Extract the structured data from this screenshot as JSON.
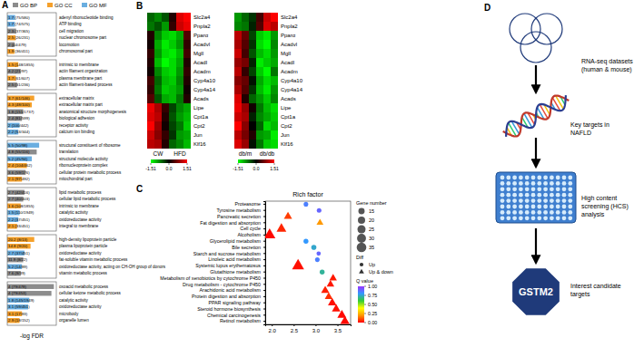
{
  "chart_data": [
    {
      "type": "bar",
      "panel": "A",
      "orientation": "horizontal",
      "xlabel": "-log FDR",
      "xlim": [
        0,
        20
      ],
      "tick_labels": false,
      "legend": "top",
      "series": [
        {
          "name": "GO BP",
          "color": "#8c8c8c"
        },
        {
          "name": "GO CC",
          "color": "#f5a02a"
        },
        {
          "name": "GO MF",
          "color": "#6aaee0"
        }
      ],
      "groups": [
        {
          "categories": [
            "adenyl ribonucleotide binding",
            "ATP binding",
            "cell migration",
            "nuclear chromosome part",
            "locomotion",
            "chromosomal part"
          ],
          "labels": [
            "1.7 (75/580)",
            "1.7 (74/575)",
            "2.3 (37/365)",
            "2.5 (26/231)",
            "2 (44/479)",
            "1.9 (36/411)"
          ],
          "ontology": [
            "GO MF",
            "GO MF",
            "GO BP",
            "GO CC",
            "GO BP",
            "GO CC"
          ],
          "values": [
            3.2,
            3.1,
            3.6,
            3.4,
            3.0,
            2.9
          ]
        },
        {
          "categories": [
            "intrinsic to membrane",
            "actin filament organization",
            "plasma membrane part",
            "actin filament-based process"
          ],
          "labels": [
            "1.5 (148/1855)",
            "4.2 (21/97)",
            "1.7 (61/607)",
            "2.5 (31/236)"
          ],
          "ontology": [
            "GO CC",
            "GO BP",
            "GO CC",
            "GO BP"
          ],
          "values": [
            4.5,
            5.5,
            3.5,
            4.0
          ]
        },
        {
          "categories": [
            "extracellular matrix",
            "extracellular matrix part",
            "anatomical structure morphogenesis",
            "biological adhesion",
            "receptor activity",
            "calcium ion binding"
          ],
          "labels": [
            "3.7 (61/146)",
            "4.3 (48/100)",
            "1.8 (151/1737)",
            "2.4 (81/599)",
            "2 (100/442)",
            "2.2 (53/344)"
          ],
          "ontology": [
            "GO CC",
            "GO CC",
            "GO BP",
            "GO BP",
            "GO MF",
            "GO MF"
          ],
          "values": [
            11,
            10,
            6.5,
            6,
            5,
            4.5
          ]
        },
        {
          "categories": [
            "structural constituent of ribosome",
            "translation",
            "structural molecule activity",
            "ribonucleoprotein complex",
            "cellular protein metabolic process",
            "mitochondrial part"
          ],
          "labels": [
            "5.5 (50/98)",
            "4.8 (55/116)",
            "5.2 (45/94)",
            "2.4 (104/462)",
            "3.6 (59/176)",
            "2.1 (97/492)"
          ],
          "ontology": [
            "GO MF",
            "GO BP",
            "GO MF",
            "GO CC",
            "GO BP",
            "GO CC"
          ],
          "values": [
            13,
            12,
            10,
            8,
            7.5,
            6
          ]
        },
        {
          "categories": [
            "lipid metabolic process",
            "cellular lipid metabolic process",
            "intrinsic to membrane",
            "catalytic activity",
            "oxidoreductase activity",
            "integral to membrane"
          ],
          "labels": [
            "2.7 (42/416)",
            "2.7 (40/403)",
            "1.6 (108/1855)",
            "1.5 (110/1949)",
            "2.2 (37/451)",
            "2.1 (33/451)"
          ],
          "ontology": [
            "GO BP",
            "GO BP",
            "GO CC",
            "GO MF",
            "GO MF",
            "GO CC"
          ],
          "values": [
            7,
            6.5,
            5.5,
            5,
            4.5,
            4
          ]
        },
        {
          "categories": [
            "high-density lipoprotein particle",
            "plasma lipoprotein particle",
            "oxidoreductase activity",
            "fat-soluble vitamin metabolic process",
            "oxidoreductase activity, acting on CH-OH group of donors",
            "vitamin metabolic process"
          ],
          "labels": [
            "20.2 (8/13)",
            "14.8 (9/20)",
            "2.7 (37/451)",
            "11.9 (8/22)",
            "5.2 (14/89)",
            "7.6 (9/39)"
          ],
          "ontology": [
            "GO CC",
            "GO CC",
            "GO MF",
            "GO BP",
            "GO MF",
            "GO BP"
          ],
          "values": [
            11,
            9.5,
            7,
            6.5,
            6,
            5.5
          ]
        },
        {
          "categories": [
            "oxoacid metabolic process",
            "cellular ketone metabolic process",
            "catalytic activity",
            "oxidoreductase activity",
            "microbody",
            "organelle lumen"
          ],
          "labels": [
            "4 (79/478)",
            "4 (79/453)",
            "1.8 (145/1949)",
            "3.1 (59/451)",
            "3.1 (17/83)",
            "2.9 (18/152)"
          ],
          "ontology": [
            "GO BP",
            "GO BP",
            "GO MF",
            "GO MF",
            "GO CC",
            "GO CC"
          ],
          "values": [
            19,
            18,
            9,
            8.5,
            6,
            5
          ]
        }
      ]
    },
    {
      "type": "heatmap",
      "panel": "B",
      "rows": [
        "Slc2a4",
        "Pnpla2",
        "Pparα",
        "Acadvl",
        "Mgll",
        "Acadl",
        "Acadm",
        "Cyp4a10",
        "Cyp4a14",
        "Acads",
        "Lipe",
        "Cpt1a",
        "Cpt2",
        "Jun",
        "Klf16"
      ],
      "column_groups": [
        "CW",
        "HFD"
      ],
      "cells": [
        [
          -0.6,
          -0.8,
          -0.5,
          0.2,
          1.3,
          1.5
        ],
        [
          -0.7,
          -0.5,
          -0.9,
          0.3,
          1.2,
          1.4
        ],
        [
          0.2,
          -0.8,
          -1.2,
          -1.3,
          -1.0,
          0.5
        ],
        [
          0.1,
          -1.0,
          -1.4,
          -1.2,
          -0.9,
          0.3
        ],
        [
          0.3,
          -0.9,
          -1.3,
          -1.4,
          -1.1,
          0.4
        ],
        [
          0.2,
          -1.1,
          -1.5,
          -1.3,
          -1.0,
          0.2
        ],
        [
          0.1,
          -0.8,
          -1.2,
          -1.3,
          -0.9,
          0.3
        ],
        [
          0.4,
          -0.6,
          -1.1,
          -1.2,
          -0.8,
          0.2
        ],
        [
          0.3,
          -0.7,
          -1.2,
          -1.1,
          -0.9,
          0.1
        ],
        [
          0.5,
          -0.5,
          -1.0,
          -1.1,
          -0.7,
          0.2
        ],
        [
          1.4,
          1.0,
          0.3,
          -0.4,
          -0.8,
          -1.0
        ],
        [
          1.3,
          1.1,
          0.2,
          -0.5,
          -0.9,
          -1.1
        ],
        [
          1.5,
          0.9,
          0.1,
          -0.4,
          -0.7,
          -1.2
        ],
        [
          1.2,
          0.8,
          0.3,
          -0.3,
          -0.9,
          -1.0
        ],
        [
          1.1,
          1.0,
          0.2,
          -0.6,
          -0.8,
          -1.1
        ]
      ],
      "colorbar": {
        "range": [
          -1.51,
          1.51
        ],
        "ticks": [
          -1.51,
          {
            "value": 0,
            "label": "0.0"
          },
          1.51
        ],
        "colors": [
          "#00ff00",
          "#000000",
          "#ff0000"
        ]
      }
    },
    {
      "type": "heatmap",
      "rows": [
        "Slc2a4",
        "Pnpla2",
        "Pparα",
        "Acadvl",
        "Mgll",
        "Acadl",
        "Acadm",
        "Cyp4a10",
        "Cyp4a14",
        "Acads",
        "Lipe",
        "Cpt1a",
        "Cpt2",
        "Jun",
        "Klf16"
      ],
      "column_groups": [
        "db/m",
        "db/db"
      ],
      "cells": [
        [
          -0.9,
          -0.6,
          -0.3,
          0.4,
          1.2,
          1.5
        ],
        [
          -0.8,
          -0.7,
          -0.2,
          0.5,
          1.3,
          1.1
        ],
        [
          1.1,
          0.6,
          -0.4,
          -1.2,
          -1.4,
          -0.9
        ],
        [
          1.0,
          0.5,
          -0.3,
          -1.3,
          -1.5,
          -0.8
        ],
        [
          1.2,
          0.4,
          -0.5,
          -1.1,
          -1.3,
          -0.9
        ],
        [
          0.9,
          0.7,
          -0.2,
          -1.4,
          -1.2,
          -1.0
        ],
        [
          1.1,
          0.3,
          -0.4,
          -1.2,
          -1.5,
          -0.7
        ],
        [
          0.8,
          0.6,
          -0.1,
          -1.0,
          -1.3,
          -1.1
        ],
        [
          1.0,
          0.5,
          -0.3,
          -1.1,
          -1.4,
          -0.9
        ],
        [
          1.3,
          0.2,
          -0.6,
          -0.9,
          -1.2,
          -0.8
        ],
        [
          1.4,
          0.9,
          0.1,
          -0.7,
          -1.1,
          -1.3
        ],
        [
          1.2,
          1.0,
          -0.2,
          -0.8,
          -1.0,
          -1.2
        ],
        [
          1.5,
          0.8,
          0.0,
          -0.6,
          -1.3,
          -1.1
        ],
        [
          1.1,
          0.7,
          0.2,
          -0.9,
          -1.0,
          -1.4
        ],
        [
          1.3,
          0.9,
          -0.1,
          -0.7,
          -1.2,
          -1.3
        ]
      ],
      "colorbar": {
        "range": [
          -1.51,
          1.51
        ],
        "ticks": [
          -1.51,
          {
            "value": 0,
            "label": "0.0"
          },
          1.51
        ],
        "colors": [
          "#00ff00",
          "#000000",
          "#ff0000"
        ]
      }
    },
    {
      "type": "scatter",
      "panel": "C",
      "orientation": "horizontal",
      "xlabel": "Rich factor",
      "categories": [
        "Proteasome",
        "Tyrosine metabolism",
        "Pancreatic secretion",
        "Fat digestion and absorption",
        "Cell cycle",
        "Alcoholism",
        "Glycerolipid metabolism",
        "Bile secretion",
        "Starch and sucrose metabolism",
        "Linoleic acid metabolism",
        "Systemic lupus erythematosus",
        "Glutathione metabolism",
        "Metabolism of xenobiotics by cytochrome P450",
        "Drug metabolism - cytochrome P450",
        "Arachidonic acid metabolism",
        "Protein digestion and absorption",
        "PPAR signaling pathway",
        "Steroid hormone biosynthesis",
        "Chemical carcinogenesis",
        "Retinol metabolism"
      ],
      "values": [
        2.78,
        3.08,
        2.37,
        3.1,
        2.22,
        1.95,
        2.78,
        2.96,
        3.07,
        3.04,
        2.6,
        3.15,
        3.4,
        3.34,
        3.22,
        3.3,
        3.38,
        3.47,
        3.6,
        3.67
      ],
      "sizes": [
        8,
        8,
        14,
        10,
        20,
        28,
        9,
        10,
        7,
        8,
        30,
        9,
        12,
        12,
        14,
        13,
        15,
        15,
        17,
        18
      ],
      "q_values": [
        0.85,
        0.9,
        0.08,
        0.2,
        0.05,
        0.01,
        0.8,
        0.75,
        0.9,
        0.85,
        0.02,
        0.7,
        0.03,
        0.03,
        0.04,
        0.06,
        0.02,
        0.02,
        0.01,
        0.01
      ],
      "diff": [
        "Up",
        "Up",
        "Up & down",
        "Up & down",
        "Up & down",
        "Up & down",
        "Up",
        "Up",
        "Up",
        "Up",
        "Up & down",
        "Up",
        "Up & down",
        "Up & down",
        "Up & down",
        "Up & down",
        "Up & down",
        "Up & down",
        "Up & down",
        "Up & down"
      ],
      "xlim": [
        1.85,
        3.8
      ],
      "xticks": [
        {
          "value": 2,
          "label": "2.0"
        },
        2.5,
        {
          "value": 3,
          "label": "3.0"
        },
        3.5
      ],
      "size_legend": {
        "title": "Gene number",
        "values": [
          15,
          20,
          25,
          30,
          35
        ]
      },
      "diff_legend": {
        "title": "Diff",
        "items": [
          {
            "name": "Up",
            "marker": "circle"
          },
          {
            "name": "Up & down",
            "marker": "triangle"
          }
        ]
      },
      "colorbar": {
        "title": "Q value",
        "range": [
          0,
          1
        ],
        "ticks": [
          {
            "value": 1,
            "label": "1.00"
          },
          {
            "value": 0.75,
            "label": "0.75"
          },
          {
            "value": 0.5,
            "label": "0.50"
          },
          {
            "value": 0.25,
            "label": "0.25"
          },
          {
            "value": 0,
            "label": "0.00"
          }
        ],
        "colors": [
          "#ff0000",
          "#ff9900",
          "#ffff00",
          "#33cc33",
          "#3399ff",
          "#9933ff"
        ]
      }
    }
  ],
  "diagram": {
    "panel": "D",
    "steps": [
      {
        "lines": [
          "RNA-seq datasets",
          "(human & mouse)"
        ]
      },
      {
        "lines": [
          "Key targets in",
          "NAFLD"
        ]
      },
      {
        "lines": [
          "High content",
          "screening (HCS)",
          "analysis"
        ]
      },
      {
        "node": "GSTM2",
        "lines": [
          "Interest candidate",
          "targets"
        ]
      }
    ]
  }
}
